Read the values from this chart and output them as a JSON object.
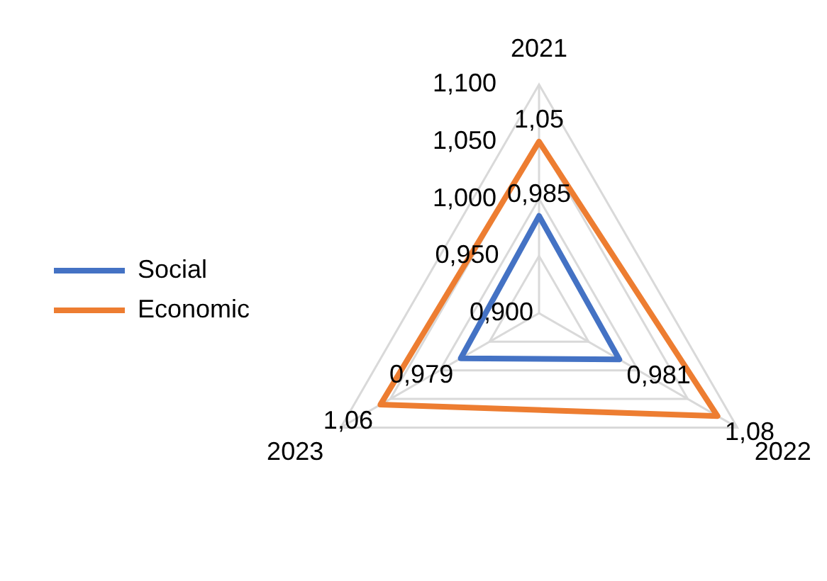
{
  "chart_data": {
    "type": "radar",
    "categories": [
      "2021",
      "2022",
      "2023"
    ],
    "series": [
      {
        "name": "Social",
        "color": "#4472c4",
        "values": [
          0.985,
          0.981,
          0.979
        ],
        "value_labels": [
          "0,985",
          "0,981",
          "0,979"
        ]
      },
      {
        "name": "Economic",
        "color": "#ed7d31",
        "values": [
          1.05,
          1.08,
          1.06
        ],
        "value_labels": [
          "1,05",
          "1,08",
          "1,06"
        ]
      }
    ],
    "ylim": [
      0.9,
      1.1
    ],
    "yticks": [
      {
        "value": 0.9,
        "label": "0,900"
      },
      {
        "value": 0.95,
        "label": "0,950"
      },
      {
        "value": 1.0,
        "label": "1,000"
      },
      {
        "value": 1.05,
        "label": "1,050"
      },
      {
        "value": 1.1,
        "label": "1,100"
      }
    ],
    "grid": true,
    "legend": "left",
    "marker": "none"
  }
}
